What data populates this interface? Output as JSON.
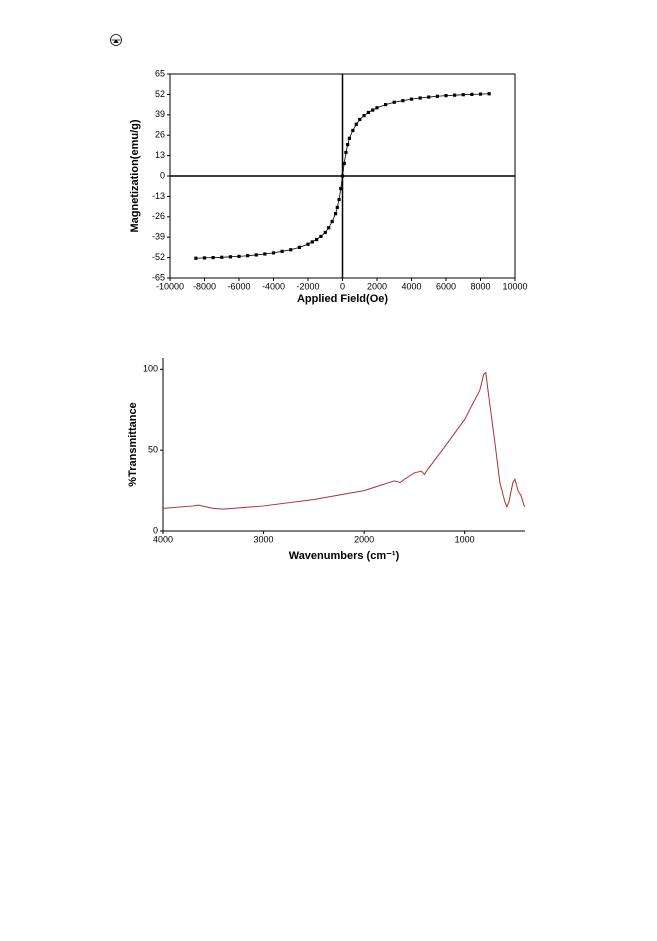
{
  "chart_data": [
    {
      "type": "line",
      "x_label": "Applied Field(Oe)",
      "y_label": "Magnetization(emu/g)",
      "x": [
        -8500,
        -8000,
        -7500,
        -7000,
        -6500,
        -6000,
        -5500,
        -5000,
        -4500,
        -4000,
        -3500,
        -3000,
        -2500,
        -2000,
        -1750,
        -1500,
        -1250,
        -1000,
        -800,
        -600,
        -400,
        -300,
        -200,
        -100,
        0,
        100,
        200,
        300,
        400,
        600,
        800,
        1000,
        1250,
        1500,
        1750,
        2000,
        2500,
        3000,
        3500,
        4000,
        4500,
        5000,
        5500,
        6000,
        6500,
        7000,
        7500,
        8000,
        8500
      ],
      "values": [
        -52.4,
        -52.2,
        -52,
        -51.8,
        -51.5,
        -51.2,
        -50.8,
        -50.3,
        -49.7,
        -49,
        -48,
        -47,
        -45.5,
        -43.5,
        -42,
        -40.5,
        -38.5,
        -36,
        -33,
        -29,
        -24,
        -20,
        -15,
        -8,
        0,
        8,
        15,
        20,
        24,
        29,
        33,
        36,
        38.5,
        40.5,
        42,
        43.5,
        45.5,
        47,
        48,
        49,
        49.7,
        50.3,
        50.8,
        51.2,
        51.5,
        51.8,
        52,
        52.2,
        52.4
      ],
      "color": "#000000",
      "markers": true,
      "zero_lines": true,
      "xlim": [
        -10000,
        10000
      ],
      "xticks": [
        -10000,
        -8000,
        -6000,
        -4000,
        -2000,
        0,
        2000,
        4000,
        6000,
        8000,
        10000
      ],
      "ylim": [
        -65,
        65
      ],
      "yticks": [
        -65,
        -52,
        -39,
        -26,
        -13,
        0,
        13,
        26,
        39,
        52,
        65
      ]
    },
    {
      "type": "line",
      "x_label": "Wavenumbers (cm⁻¹)",
      "y_label": "%Transmittance",
      "x": [
        4000,
        3700,
        3650,
        3500,
        3400,
        3000,
        2500,
        2000,
        1700,
        1640,
        1600,
        1500,
        1430,
        1400,
        1380,
        1200,
        1000,
        900,
        850,
        810,
        790,
        770,
        700,
        650,
        600,
        580,
        560,
        520,
        500,
        470,
        440,
        410,
        400
      ],
      "values": [
        14,
        15.5,
        16,
        14,
        13.5,
        15.5,
        19.5,
        25,
        31,
        30,
        32,
        36,
        37,
        35,
        37,
        52,
        69,
        81,
        87,
        97,
        98,
        88,
        55,
        30,
        18,
        15,
        18,
        30,
        32,
        25,
        22,
        16,
        15
      ],
      "color": "#b03030",
      "markers": false,
      "zero_lines": false,
      "xlim": [
        4000,
        400
      ],
      "xticks": [
        4000,
        3000,
        2000,
        1000
      ],
      "ylim": [
        0,
        107
      ],
      "yticks": [
        0,
        50,
        100
      ]
    }
  ]
}
